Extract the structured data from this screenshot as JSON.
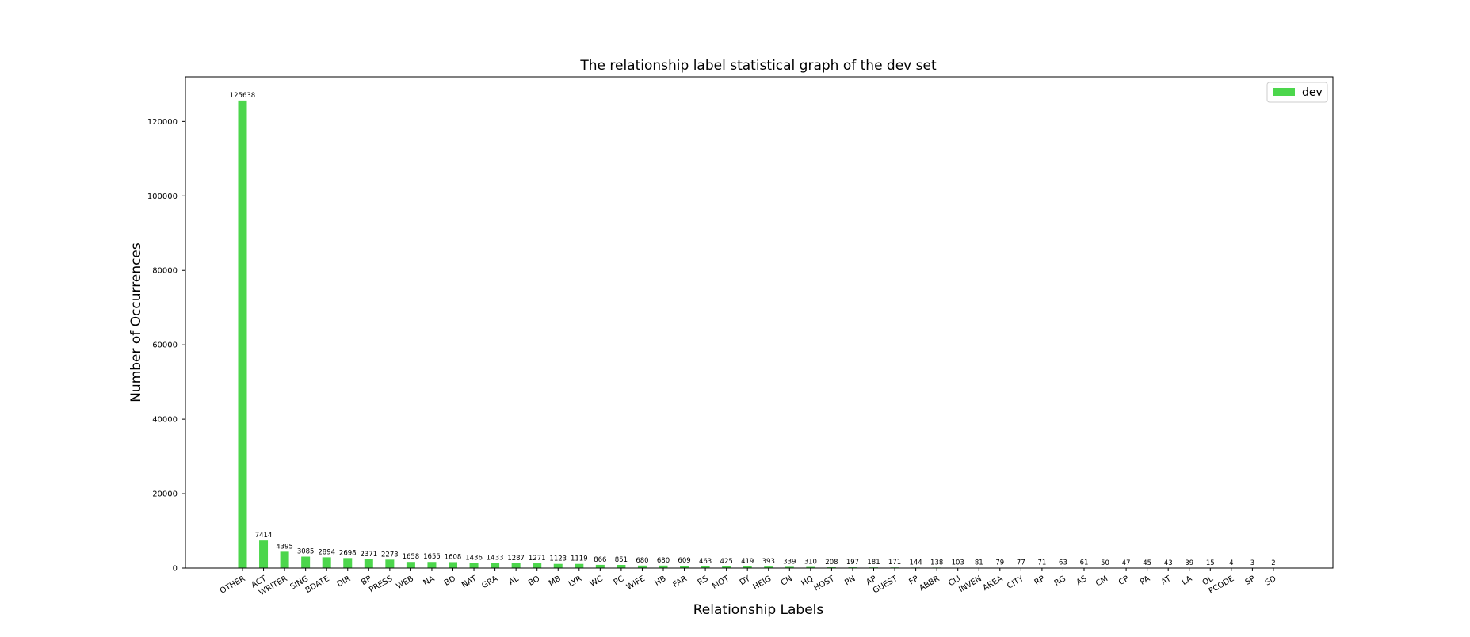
{
  "chart_data": {
    "type": "bar",
    "title": "The relationship label statistical graph of the dev set",
    "xlabel": "Relationship Labels",
    "ylabel": "Number of Occurrences",
    "ylim": [
      0,
      132000
    ],
    "yticks": [
      0,
      20000,
      40000,
      60000,
      80000,
      100000,
      120000
    ],
    "grid": false,
    "legend_position": "top-right",
    "series": [
      {
        "name": "dev",
        "color": "#4cd64c",
        "values": [
          125638,
          7414,
          4395,
          3085,
          2894,
          2698,
          2371,
          2273,
          1658,
          1655,
          1608,
          1436,
          1433,
          1287,
          1271,
          1123,
          1119,
          866,
          851,
          680,
          680,
          609,
          463,
          425,
          419,
          393,
          339,
          310,
          208,
          197,
          181,
          171,
          144,
          138,
          103,
          81,
          79,
          77,
          71,
          63,
          61,
          50,
          47,
          45,
          43,
          39,
          15,
          4,
          3,
          2
        ]
      }
    ],
    "categories": [
      "OTHER",
      "ACT",
      "WRITER",
      "SING",
      "BDATE",
      "DIR",
      "BP",
      "PRESS",
      "WEB",
      "NA",
      "BD",
      "NAT",
      "GRA",
      "AL",
      "BO",
      "MB",
      "LYR",
      "WC",
      "PC",
      "WIFE",
      "HB",
      "FAR",
      "RS",
      "MOT",
      "DY",
      "HEIG",
      "CN",
      "HQ",
      "HOST",
      "PN",
      "AP",
      "GUEST",
      "FP",
      "ABBR",
      "CLI",
      "INVEN",
      "AREA",
      "CITY",
      "RP",
      "RG",
      "AS",
      "CM",
      "CP",
      "PA",
      "AT",
      "LA",
      "OL",
      "PCODE",
      "SP",
      "SD"
    ]
  }
}
